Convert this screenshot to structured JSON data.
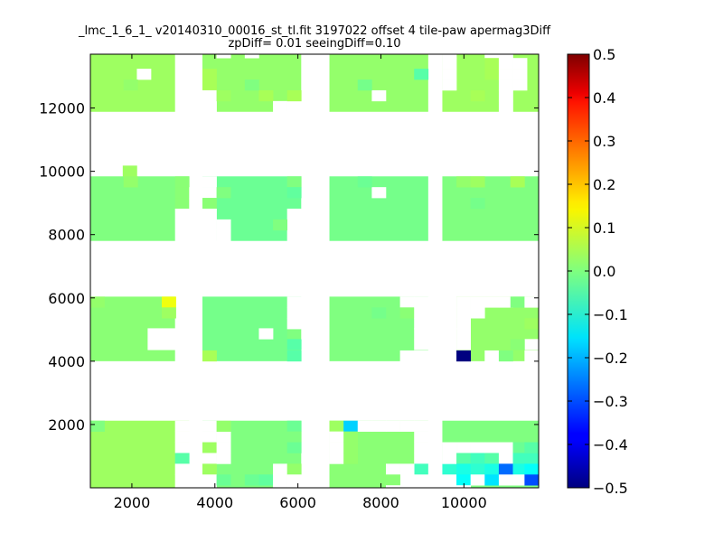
{
  "chart_data": {
    "type": "heatmap",
    "title_line1": "_lmc_1_6_1_ v20140310_00016_st_tl.fit 3197022 offset 4 tile-paw apermag3Diff",
    "title_line2": "zpDiff= 0.01 seeingDiff=0.10",
    "xlim": [
      1000,
      11800
    ],
    "ylim": [
      0,
      13700
    ],
    "x_ticks": [
      2000,
      4000,
      6000,
      8000,
      10000
    ],
    "y_ticks": [
      2000,
      4000,
      6000,
      8000,
      10000,
      12000
    ],
    "colorbar": {
      "colormap": "jet",
      "vmin": -0.5,
      "vmax": 0.5,
      "ticks": [
        0.5,
        0.4,
        0.3,
        0.2,
        0.1,
        0.0,
        -0.1,
        -0.2,
        -0.3,
        -0.4,
        -0.5
      ],
      "tick_labels": [
        "0.5",
        "0.4",
        "0.3",
        "0.2",
        "0.1",
        "0.0",
        "−0.1",
        "−0.2",
        "−0.3",
        "−0.4",
        "−0.5"
      ]
    },
    "cell_size": [
      340,
      340
    ],
    "regions": [
      {
        "x": [
          1000,
          3040
        ],
        "y": [
          11880,
          13700
        ],
        "value": 0.03
      },
      {
        "x": [
          3700,
          6080
        ],
        "y": [
          11880,
          13700
        ],
        "value": 0.02
      },
      {
        "x": [
          6760,
          9140
        ],
        "y": [
          11880,
          13700
        ],
        "value": 0.02
      },
      {
        "x": [
          9480,
          11800
        ],
        "y": [
          11880,
          13700
        ],
        "value": 0.03
      },
      {
        "x": [
          1000,
          3380
        ],
        "y": [
          7800,
          9840
        ],
        "value": 0.0
      },
      {
        "x": [
          3700,
          6080
        ],
        "y": [
          7800,
          9840
        ],
        "value": -0.02
      },
      {
        "x": [
          6760,
          9140
        ],
        "y": [
          7800,
          9840
        ],
        "value": -0.01
      },
      {
        "x": [
          9480,
          11800
        ],
        "y": [
          7800,
          9840
        ],
        "value": 0.0
      },
      {
        "x": [
          1000,
          3040
        ],
        "y": [
          4000,
          6040
        ],
        "value": 0.01
      },
      {
        "x": [
          3700,
          6080
        ],
        "y": [
          4000,
          6040
        ],
        "value": -0.01
      },
      {
        "x": [
          6760,
          9140
        ],
        "y": [
          4000,
          6040
        ],
        "value": 0.0
      },
      {
        "x": [
          9820,
          11800
        ],
        "y": [
          4000,
          6040
        ],
        "value": 0.02
      },
      {
        "x": [
          1000,
          3380
        ],
        "y": [
          0,
          2120
        ],
        "value": 0.03
      },
      {
        "x": [
          3700,
          6080
        ],
        "y": [
          0,
          2120
        ],
        "value": 0.0
      },
      {
        "x": [
          6760,
          9140
        ],
        "y": [
          0,
          2120
        ],
        "value": 0.01
      },
      {
        "x": [
          9480,
          11800
        ],
        "y": [
          0,
          2120
        ],
        "value": 0.0
      }
    ],
    "cells": [
      {
        "x": 2120,
        "y": 12900,
        "value": null
      },
      {
        "x": 1800,
        "y": 12560,
        "value": 0.02
      },
      {
        "x": 3700,
        "y": 12900,
        "value": 0.04
      },
      {
        "x": 3700,
        "y": 12560,
        "value": 0.04
      },
      {
        "x": 3700,
        "y": 12220,
        "value": null
      },
      {
        "x": 3700,
        "y": 11880,
        "value": null
      },
      {
        "x": 4040,
        "y": 13580,
        "value": null
      },
      {
        "x": 4720,
        "y": 13580,
        "value": null
      },
      {
        "x": 4040,
        "y": 12220,
        "value": 0.03
      },
      {
        "x": 5060,
        "y": 12220,
        "value": 0.04
      },
      {
        "x": 5400,
        "y": 11880,
        "value": null
      },
      {
        "x": 5740,
        "y": 11880,
        "value": null
      },
      {
        "x": 5740,
        "y": 12220,
        "value": 0.04
      },
      {
        "x": 4720,
        "y": 12560,
        "value": 0.0
      },
      {
        "x": 7780,
        "y": 12220,
        "value": null
      },
      {
        "x": 7440,
        "y": 12560,
        "value": -0.01
      },
      {
        "x": 8800,
        "y": 12900,
        "value": -0.04
      },
      {
        "x": 9480,
        "y": 13580,
        "value": null
      },
      {
        "x": 9480,
        "y": 13240,
        "value": null
      },
      {
        "x": 9480,
        "y": 12900,
        "value": null
      },
      {
        "x": 9480,
        "y": 12560,
        "value": null
      },
      {
        "x": 10500,
        "y": 13580,
        "value": null
      },
      {
        "x": 10500,
        "y": 13240,
        "value": 0.04
      },
      {
        "x": 10500,
        "y": 12900,
        "value": 0.04
      },
      {
        "x": 10840,
        "y": 13580,
        "value": null
      },
      {
        "x": 10840,
        "y": 13240,
        "value": null
      },
      {
        "x": 10840,
        "y": 12900,
        "value": null
      },
      {
        "x": 10840,
        "y": 12560,
        "value": null
      },
      {
        "x": 10840,
        "y": 12220,
        "value": null
      },
      {
        "x": 10840,
        "y": 11880,
        "value": null
      },
      {
        "x": 11180,
        "y": 13240,
        "value": null
      },
      {
        "x": 11180,
        "y": 12900,
        "value": null
      },
      {
        "x": 11180,
        "y": 12560,
        "value": null
      },
      {
        "x": 10160,
        "y": 12220,
        "value": 0.04
      },
      {
        "x": 1780,
        "y": 9840,
        "value": 0.03
      },
      {
        "x": 1800,
        "y": 9500,
        "value": 0.02
      },
      {
        "x": 3040,
        "y": 9500,
        "value": 0.01
      },
      {
        "x": 3040,
        "y": 9160,
        "value": 0.01
      },
      {
        "x": 3040,
        "y": 8820,
        "value": 0.01
      },
      {
        "x": 3040,
        "y": 8480,
        "value": null
      },
      {
        "x": 3040,
        "y": 8140,
        "value": null
      },
      {
        "x": 3040,
        "y": 7800,
        "value": null
      },
      {
        "x": 3380,
        "y": 9160,
        "value": null
      },
      {
        "x": 3380,
        "y": 8820,
        "value": null
      },
      {
        "x": 3700,
        "y": 9500,
        "value": null
      },
      {
        "x": 3700,
        "y": 9160,
        "value": null
      },
      {
        "x": 3700,
        "y": 8820,
        "value": 0.01
      },
      {
        "x": 3700,
        "y": 8480,
        "value": null
      },
      {
        "x": 3700,
        "y": 8140,
        "value": null
      },
      {
        "x": 3700,
        "y": 7800,
        "value": null
      },
      {
        "x": 4040,
        "y": 8140,
        "value": null
      },
      {
        "x": 4040,
        "y": 7800,
        "value": null
      },
      {
        "x": 4040,
        "y": 9160,
        "value": 0.0
      },
      {
        "x": 5740,
        "y": 9500,
        "value": 0.0
      },
      {
        "x": 5740,
        "y": 9160,
        "value": -0.03
      },
      {
        "x": 5740,
        "y": 8480,
        "value": null
      },
      {
        "x": 5740,
        "y": 8140,
        "value": null
      },
      {
        "x": 5740,
        "y": 7800,
        "value": null
      },
      {
        "x": 5400,
        "y": 8140,
        "value": 0.0
      },
      {
        "x": 7780,
        "y": 9160,
        "value": null
      },
      {
        "x": 7440,
        "y": 9500,
        "value": -0.02
      },
      {
        "x": 9820,
        "y": 9500,
        "value": 0.02
      },
      {
        "x": 10160,
        "y": 9500,
        "value": 0.03
      },
      {
        "x": 11120,
        "y": 9500,
        "value": 0.04
      },
      {
        "x": 10160,
        "y": 8820,
        "value": -0.01
      },
      {
        "x": 1000,
        "y": 5700,
        "value": 0.02
      },
      {
        "x": 2720,
        "y": 5700,
        "value": 0.11
      },
      {
        "x": 2720,
        "y": 5360,
        "value": 0.03
      },
      {
        "x": 2380,
        "y": 4700,
        "value": null
      },
      {
        "x": 2380,
        "y": 4360,
        "value": null
      },
      {
        "x": 2720,
        "y": 4700,
        "value": null
      },
      {
        "x": 2720,
        "y": 4360,
        "value": null
      },
      {
        "x": 3700,
        "y": 4000,
        "value": 0.04
      },
      {
        "x": 5060,
        "y": 4700,
        "value": null
      },
      {
        "x": 5740,
        "y": 4700,
        "value": 0.0
      },
      {
        "x": 5740,
        "y": 4360,
        "value": -0.04
      },
      {
        "x": 5740,
        "y": 4000,
        "value": -0.04
      },
      {
        "x": 5740,
        "y": 5700,
        "value": null
      },
      {
        "x": 5740,
        "y": 5360,
        "value": null
      },
      {
        "x": 5740,
        "y": 5020,
        "value": null
      },
      {
        "x": 6080,
        "y": 4700,
        "value": null
      },
      {
        "x": 7780,
        "y": 5360,
        "value": -0.01
      },
      {
        "x": 8460,
        "y": 5700,
        "value": null
      },
      {
        "x": 8460,
        "y": 5360,
        "value": 0.01
      },
      {
        "x": 8800,
        "y": 5700,
        "value": null
      },
      {
        "x": 8800,
        "y": 5360,
        "value": null
      },
      {
        "x": 8800,
        "y": 5020,
        "value": null
      },
      {
        "x": 8800,
        "y": 4700,
        "value": null
      },
      {
        "x": 8800,
        "y": 4360,
        "value": null
      },
      {
        "x": 8800,
        "y": 4000,
        "value": null
      },
      {
        "x": 8460,
        "y": 4000,
        "value": null
      },
      {
        "x": 9820,
        "y": 4000,
        "value": -0.5
      },
      {
        "x": 9820,
        "y": 5700,
        "value": null
      },
      {
        "x": 9820,
        "y": 5360,
        "value": null
      },
      {
        "x": 9820,
        "y": 5020,
        "value": null
      },
      {
        "x": 9820,
        "y": 4700,
        "value": null
      },
      {
        "x": 9820,
        "y": 4360,
        "value": null
      },
      {
        "x": 10160,
        "y": 5700,
        "value": null
      },
      {
        "x": 10160,
        "y": 5360,
        "value": null
      },
      {
        "x": 10500,
        "y": 5700,
        "value": null
      },
      {
        "x": 10500,
        "y": 4000,
        "value": null
      },
      {
        "x": 10840,
        "y": 5700,
        "value": null
      },
      {
        "x": 10840,
        "y": 4000,
        "value": 0.0
      },
      {
        "x": 11120,
        "y": 5700,
        "value": 0.0
      },
      {
        "x": 11460,
        "y": 5700,
        "value": null
      },
      {
        "x": 11460,
        "y": 4360,
        "value": null
      },
      {
        "x": 11460,
        "y": 4000,
        "value": null
      },
      {
        "x": 11460,
        "y": 5020,
        "value": 0.03
      },
      {
        "x": 11120,
        "y": 4360,
        "value": 0.01
      },
      {
        "x": 1000,
        "y": 1780,
        "value": 0.0
      },
      {
        "x": 3040,
        "y": 1780,
        "value": null
      },
      {
        "x": 3040,
        "y": 1440,
        "value": null
      },
      {
        "x": 3040,
        "y": 1100,
        "value": null
      },
      {
        "x": 3040,
        "y": 760,
        "value": -0.04
      },
      {
        "x": 3040,
        "y": 420,
        "value": null
      },
      {
        "x": 3040,
        "y": 80,
        "value": null
      },
      {
        "x": 3040,
        "y": -260,
        "value": null
      },
      {
        "x": 3700,
        "y": 1780,
        "value": null
      },
      {
        "x": 3700,
        "y": 1440,
        "value": null
      },
      {
        "x": 3700,
        "y": 1100,
        "value": 0.03
      },
      {
        "x": 3700,
        "y": 760,
        "value": null
      },
      {
        "x": 3700,
        "y": 420,
        "value": 0.03
      },
      {
        "x": 3700,
        "y": 80,
        "value": null
      },
      {
        "x": 3700,
        "y": -260,
        "value": null
      },
      {
        "x": 4040,
        "y": 1780,
        "value": null
      },
      {
        "x": 4040,
        "y": 1440,
        "value": null
      },
      {
        "x": 4040,
        "y": 1100,
        "value": null
      },
      {
        "x": 4040,
        "y": 760,
        "value": null
      },
      {
        "x": 4040,
        "y": 1780,
        "value": 0.02
      },
      {
        "x": 4040,
        "y": 80,
        "value": -0.02
      },
      {
        "x": 4720,
        "y": 80,
        "value": -0.02
      },
      {
        "x": 5060,
        "y": 80,
        "value": -0.03
      },
      {
        "x": 5400,
        "y": 420,
        "value": null
      },
      {
        "x": 5400,
        "y": 80,
        "value": null
      },
      {
        "x": 5400,
        "y": -260,
        "value": null
      },
      {
        "x": 5740,
        "y": 420,
        "value": 0.02
      },
      {
        "x": 5740,
        "y": 80,
        "value": null
      },
      {
        "x": 5740,
        "y": -260,
        "value": null
      },
      {
        "x": 5740,
        "y": 1780,
        "value": -0.02
      },
      {
        "x": 5740,
        "y": 1440,
        "value": 0.0
      },
      {
        "x": 5740,
        "y": 1100,
        "value": -0.02
      },
      {
        "x": 6760,
        "y": 1780,
        "value": 0.03
      },
      {
        "x": 7100,
        "y": 1780,
        "value": -0.17
      },
      {
        "x": 6760,
        "y": 1440,
        "value": null
      },
      {
        "x": 6760,
        "y": 1100,
        "value": null
      },
      {
        "x": 6760,
        "y": 760,
        "value": null
      },
      {
        "x": 7100,
        "y": 1440,
        "value": 0.02
      },
      {
        "x": 7100,
        "y": 1100,
        "value": 0.02
      },
      {
        "x": 7100,
        "y": 760,
        "value": 0.02
      },
      {
        "x": 7440,
        "y": 1780,
        "value": null
      },
      {
        "x": 7780,
        "y": 1780,
        "value": null
      },
      {
        "x": 8120,
        "y": 1780,
        "value": null
      },
      {
        "x": 8460,
        "y": 1780,
        "value": null
      },
      {
        "x": 8800,
        "y": 1780,
        "value": null
      },
      {
        "x": 8800,
        "y": 1440,
        "value": null
      },
      {
        "x": 8800,
        "y": 1100,
        "value": null
      },
      {
        "x": 8800,
        "y": 760,
        "value": null
      },
      {
        "x": 8800,
        "y": 420,
        "value": -0.06
      },
      {
        "x": 8800,
        "y": 80,
        "value": null
      },
      {
        "x": 8800,
        "y": -260,
        "value": null
      },
      {
        "x": 8460,
        "y": 420,
        "value": null
      },
      {
        "x": 8460,
        "y": 80,
        "value": null
      },
      {
        "x": 8460,
        "y": -260,
        "value": null
      },
      {
        "x": 8120,
        "y": 420,
        "value": null
      },
      {
        "x": 8120,
        "y": 80,
        "value": 0.01
      },
      {
        "x": 8120,
        "y": -260,
        "value": null
      },
      {
        "x": 9140,
        "y": 420,
        "value": null
      },
      {
        "x": 9140,
        "y": 80,
        "value": null
      },
      {
        "x": 9140,
        "y": -260,
        "value": null
      },
      {
        "x": 9480,
        "y": 420,
        "value": -0.08
      },
      {
        "x": 9480,
        "y": 80,
        "value": null
      },
      {
        "x": 9480,
        "y": -260,
        "value": null
      },
      {
        "x": 9480,
        "y": 1100,
        "value": null
      },
      {
        "x": 9480,
        "y": 760,
        "value": null
      },
      {
        "x": 9820,
        "y": 1100,
        "value": null
      },
      {
        "x": 9820,
        "y": 760,
        "value": -0.04
      },
      {
        "x": 9820,
        "y": 420,
        "value": -0.1
      },
      {
        "x": 9820,
        "y": 80,
        "value": -0.12
      },
      {
        "x": 9820,
        "y": -260,
        "value": null
      },
      {
        "x": 10160,
        "y": 1100,
        "value": null
      },
      {
        "x": 10160,
        "y": 760,
        "value": -0.06
      },
      {
        "x": 10160,
        "y": 420,
        "value": -0.08
      },
      {
        "x": 10160,
        "y": 80,
        "value": null
      },
      {
        "x": 10500,
        "y": 1100,
        "value": null
      },
      {
        "x": 10500,
        "y": 760,
        "value": -0.04
      },
      {
        "x": 10500,
        "y": 420,
        "value": -0.1
      },
      {
        "x": 10500,
        "y": 80,
        "value": -0.15
      },
      {
        "x": 10840,
        "y": 1100,
        "value": null
      },
      {
        "x": 10840,
        "y": 760,
        "value": null
      },
      {
        "x": 10840,
        "y": 420,
        "value": -0.27
      },
      {
        "x": 10840,
        "y": 80,
        "value": null
      },
      {
        "x": 11180,
        "y": 1100,
        "value": -0.02
      },
      {
        "x": 11180,
        "y": 760,
        "value": -0.06
      },
      {
        "x": 11180,
        "y": 420,
        "value": -0.1
      },
      {
        "x": 11180,
        "y": 80,
        "value": null
      },
      {
        "x": 11460,
        "y": 760,
        "value": -0.06
      },
      {
        "x": 11460,
        "y": 420,
        "value": -0.12
      },
      {
        "x": 11460,
        "y": 80,
        "value": -0.3
      },
      {
        "x": 11460,
        "y": 1100,
        "value": -0.04
      }
    ]
  }
}
